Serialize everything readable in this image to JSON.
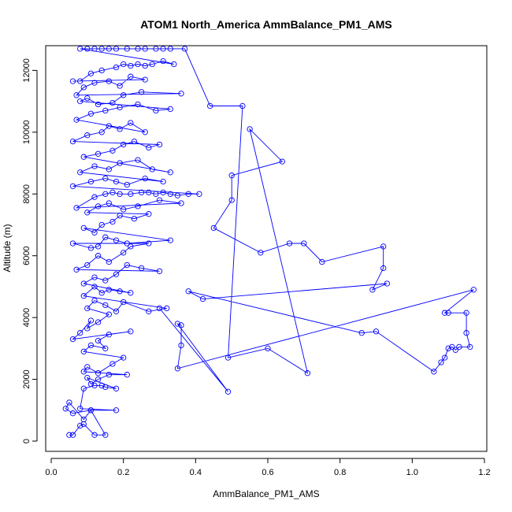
{
  "chart_data": {
    "type": "scatter",
    "title": "ATOM1 North_America AmmBalance_PM1_AMS",
    "xlabel": "AmmBalance_PM1_AMS",
    "ylabel": "Altitude (m)",
    "xlim": [
      0.0,
      1.2
    ],
    "ylim": [
      0,
      12800
    ],
    "xticks": [
      0.0,
      0.2,
      0.4,
      0.6,
      0.8,
      1.0,
      1.2
    ],
    "xtick_labels": [
      "0.0",
      "0.2",
      "0.4",
      "0.6",
      "0.8",
      "1.0",
      "1.2"
    ],
    "yticks": [
      0,
      2000,
      4000,
      6000,
      8000,
      10000,
      12000
    ],
    "ytick_labels": [
      "0",
      "2000",
      "4000",
      "6000",
      "8000",
      "10000",
      "12000"
    ],
    "grid": false,
    "legend": "none",
    "color": "#0000ff",
    "series": [
      {
        "values": [
          [
            0.05,
            200
          ],
          [
            0.06,
            200
          ],
          [
            0.08,
            500
          ],
          [
            0.09,
            550
          ],
          [
            0.12,
            200
          ],
          [
            0.15,
            200
          ],
          [
            0.11,
            1000
          ],
          [
            0.06,
            900
          ],
          [
            0.04,
            1050
          ],
          [
            0.05,
            1250
          ],
          [
            0.09,
            700
          ],
          [
            0.11,
            1000
          ],
          [
            0.18,
            1000
          ],
          [
            0.08,
            1050
          ],
          [
            0.09,
            1700
          ],
          [
            0.12,
            1800
          ],
          [
            0.14,
            1800
          ],
          [
            0.15,
            1750
          ],
          [
            0.18,
            1700
          ],
          [
            0.1,
            2050
          ],
          [
            0.11,
            1850
          ],
          [
            0.13,
            2000
          ],
          [
            0.16,
            2150
          ],
          [
            0.21,
            2150
          ],
          [
            0.09,
            2250
          ],
          [
            0.1,
            2400
          ],
          [
            0.13,
            2200
          ],
          [
            0.17,
            2500
          ],
          [
            0.2,
            2700
          ],
          [
            0.09,
            2900
          ],
          [
            0.11,
            3100
          ],
          [
            0.15,
            3000
          ],
          [
            0.13,
            3250
          ],
          [
            0.16,
            3450
          ],
          [
            0.22,
            3550
          ],
          [
            0.06,
            3300
          ],
          [
            0.08,
            3500
          ],
          [
            0.11,
            3900
          ],
          [
            0.1,
            3650
          ],
          [
            0.13,
            3850
          ],
          [
            0.16,
            4100
          ],
          [
            0.1,
            4300
          ],
          [
            0.12,
            4550
          ],
          [
            0.15,
            4400
          ],
          [
            0.18,
            4200
          ],
          [
            0.2,
            4500
          ],
          [
            0.27,
            4200
          ],
          [
            0.32,
            4300
          ],
          [
            0.09,
            4700
          ],
          [
            0.12,
            5000
          ],
          [
            0.14,
            4800
          ],
          [
            0.16,
            4900
          ],
          [
            0.19,
            4850
          ],
          [
            0.22,
            4800
          ],
          [
            0.09,
            5100
          ],
          [
            0.12,
            5300
          ],
          [
            0.15,
            5200
          ],
          [
            0.18,
            5400
          ],
          [
            0.21,
            5700
          ],
          [
            0.25,
            5600
          ],
          [
            0.3,
            5500
          ],
          [
            0.07,
            5550
          ],
          [
            0.1,
            5700
          ],
          [
            0.13,
            6000
          ],
          [
            0.16,
            5800
          ],
          [
            0.2,
            6100
          ],
          [
            0.22,
            6300
          ],
          [
            0.27,
            6400
          ],
          [
            0.06,
            6400
          ],
          [
            0.11,
            6250
          ],
          [
            0.13,
            6300
          ],
          [
            0.15,
            6600
          ],
          [
            0.18,
            6500
          ],
          [
            0.21,
            6400
          ],
          [
            0.33,
            6500
          ],
          [
            0.09,
            6900
          ],
          [
            0.12,
            6750
          ],
          [
            0.14,
            7000
          ],
          [
            0.17,
            7100
          ],
          [
            0.19,
            7300
          ],
          [
            0.23,
            7200
          ],
          [
            0.27,
            7350
          ],
          [
            0.1,
            7400
          ],
          [
            0.13,
            7600
          ],
          [
            0.16,
            7700
          ],
          [
            0.2,
            7500
          ],
          [
            0.24,
            7600
          ],
          [
            0.3,
            7800
          ],
          [
            0.36,
            7700
          ],
          [
            0.07,
            7550
          ],
          [
            0.12,
            7900
          ],
          [
            0.15,
            8000
          ],
          [
            0.17,
            8050
          ],
          [
            0.19,
            8000
          ],
          [
            0.22,
            8000
          ],
          [
            0.25,
            8050
          ],
          [
            0.27,
            8050
          ],
          [
            0.29,
            8000
          ],
          [
            0.31,
            8050
          ],
          [
            0.33,
            8000
          ],
          [
            0.35,
            7950
          ],
          [
            0.38,
            8000
          ],
          [
            0.41,
            8000
          ],
          [
            0.06,
            8250
          ],
          [
            0.11,
            8400
          ],
          [
            0.15,
            8500
          ],
          [
            0.18,
            8400
          ],
          [
            0.21,
            8300
          ],
          [
            0.26,
            8500
          ],
          [
            0.31,
            8400
          ],
          [
            0.08,
            8700
          ],
          [
            0.12,
            8900
          ],
          [
            0.16,
            8800
          ],
          [
            0.19,
            9000
          ],
          [
            0.24,
            9100
          ],
          [
            0.28,
            8800
          ],
          [
            0.33,
            8700
          ],
          [
            0.09,
            9200
          ],
          [
            0.13,
            9300
          ],
          [
            0.17,
            9400
          ],
          [
            0.2,
            9600
          ],
          [
            0.23,
            9700
          ],
          [
            0.27,
            9500
          ],
          [
            0.3,
            9600
          ],
          [
            0.06,
            9700
          ],
          [
            0.1,
            9900
          ],
          [
            0.14,
            10000
          ],
          [
            0.16,
            10200
          ],
          [
            0.19,
            10100
          ],
          [
            0.22,
            10300
          ],
          [
            0.26,
            10000
          ],
          [
            0.07,
            10400
          ],
          [
            0.11,
            10600
          ],
          [
            0.15,
            10700
          ],
          [
            0.19,
            10800
          ],
          [
            0.24,
            10900
          ],
          [
            0.29,
            10700
          ],
          [
            0.33,
            10750
          ],
          [
            0.08,
            11000
          ],
          [
            0.1,
            11100
          ],
          [
            0.13,
            10900
          ],
          [
            0.17,
            10950
          ],
          [
            0.2,
            11200
          ],
          [
            0.25,
            11300
          ],
          [
            0.36,
            11250
          ],
          [
            0.07,
            11200
          ],
          [
            0.09,
            11450
          ],
          [
            0.12,
            11600
          ],
          [
            0.16,
            11650
          ],
          [
            0.19,
            11500
          ],
          [
            0.22,
            11800
          ],
          [
            0.26,
            11700
          ],
          [
            0.06,
            11650
          ],
          [
            0.08,
            11650
          ],
          [
            0.11,
            11900
          ],
          [
            0.14,
            12000
          ],
          [
            0.18,
            12100
          ],
          [
            0.2,
            12200
          ],
          [
            0.22,
            12150
          ],
          [
            0.24,
            12200
          ],
          [
            0.26,
            12150
          ],
          [
            0.28,
            12200
          ],
          [
            0.31,
            12300
          ],
          [
            0.34,
            12200
          ],
          [
            0.08,
            12700
          ],
          [
            0.1,
            12700
          ],
          [
            0.12,
            12700
          ],
          [
            0.14,
            12700
          ],
          [
            0.16,
            12700
          ],
          [
            0.18,
            12700
          ],
          [
            0.21,
            12700
          ],
          [
            0.24,
            12700
          ],
          [
            0.26,
            12700
          ],
          [
            0.29,
            12700
          ],
          [
            0.31,
            12700
          ],
          [
            0.33,
            12700
          ],
          [
            0.37,
            12700
          ],
          [
            0.44,
            10850
          ],
          [
            0.53,
            10850
          ],
          [
            0.49,
            2700
          ],
          [
            0.6,
            3000
          ],
          [
            0.71,
            2200
          ],
          [
            0.55,
            10100
          ],
          [
            0.64,
            9050
          ],
          [
            0.5,
            8600
          ],
          [
            0.5,
            7800
          ],
          [
            0.45,
            6900
          ],
          [
            0.58,
            6100
          ],
          [
            0.66,
            6400
          ],
          [
            0.7,
            6400
          ],
          [
            0.75,
            5800
          ],
          [
            0.92,
            6300
          ],
          [
            0.92,
            5600
          ],
          [
            0.89,
            4900
          ],
          [
            0.93,
            5100
          ],
          [
            0.42,
            4600
          ],
          [
            0.38,
            4850
          ],
          [
            0.86,
            3500
          ],
          [
            0.9,
            3550
          ],
          [
            1.06,
            2250
          ],
          [
            1.08,
            2550
          ],
          [
            1.09,
            2700
          ],
          [
            1.1,
            3000
          ],
          [
            1.11,
            3050
          ],
          [
            1.12,
            2950
          ],
          [
            1.13,
            3050
          ],
          [
            1.16,
            3050
          ],
          [
            1.15,
            3500
          ],
          [
            1.15,
            4150
          ],
          [
            1.1,
            4150
          ],
          [
            1.09,
            4150
          ],
          [
            1.17,
            4900
          ],
          [
            0.35,
            2350
          ],
          [
            0.36,
            3100
          ],
          [
            0.36,
            3750
          ],
          [
            0.35,
            3800
          ],
          [
            0.49,
            1600
          ],
          [
            0.3,
            4300
          ]
        ]
      }
    ]
  }
}
